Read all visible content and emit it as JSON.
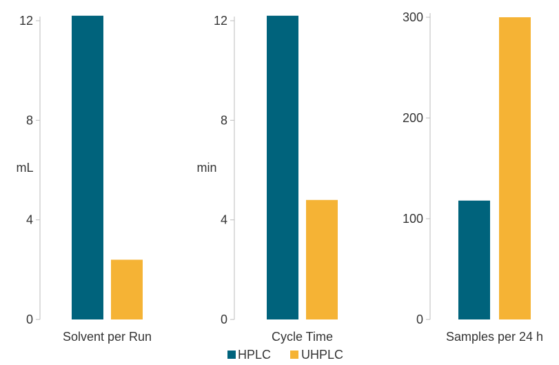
{
  "chart_data": [
    {
      "type": "bar",
      "categories": [
        "Solvent per Run"
      ],
      "series": [
        {
          "name": "HPLC",
          "values": [
            12.2
          ]
        },
        {
          "name": "UHPLC",
          "values": [
            2.4
          ]
        }
      ],
      "ylabel": "mL",
      "ylim": [
        0,
        12
      ],
      "yticks": [
        0,
        4,
        8,
        12
      ],
      "grid": false
    },
    {
      "type": "bar",
      "categories": [
        "Cycle Time"
      ],
      "series": [
        {
          "name": "HPLC",
          "values": [
            12.2
          ]
        },
        {
          "name": "UHPLC",
          "values": [
            4.8
          ]
        }
      ],
      "ylabel": "min",
      "ylim": [
        0,
        12
      ],
      "yticks": [
        0,
        4,
        8,
        12
      ],
      "grid": false
    },
    {
      "type": "bar",
      "categories": [
        "Samples per 24 h"
      ],
      "series": [
        {
          "name": "HPLC",
          "values": [
            118
          ]
        },
        {
          "name": "UHPLC",
          "values": [
            300
          ]
        }
      ],
      "ylabel": "",
      "ylim": [
        0,
        300
      ],
      "yticks": [
        0,
        100,
        200,
        300
      ],
      "grid": false
    }
  ],
  "legend": {
    "placement": "bottom-center",
    "items": [
      {
        "label": "HPLC",
        "color": "#00637c"
      },
      {
        "label": "UHPLC",
        "color": "#f5b335"
      }
    ]
  },
  "colors": {
    "hplc": "#00637c",
    "uhplc": "#f5b335",
    "axis": "#bbbbbb",
    "text": "#333333"
  }
}
